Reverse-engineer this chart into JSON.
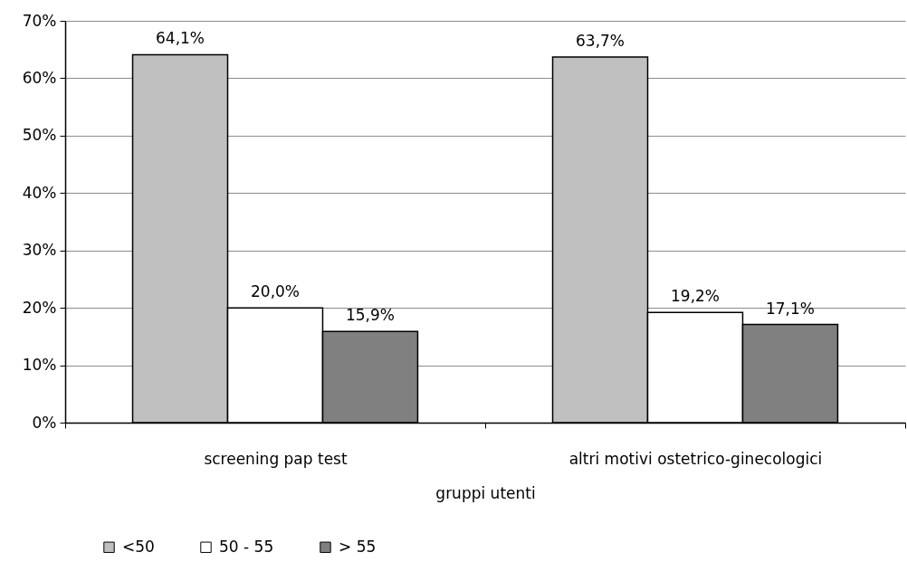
{
  "chart_data": {
    "type": "bar",
    "xlabel": "gruppi utenti",
    "categories": [
      "screening pap test",
      "altri motivi ostetrico-ginecologici"
    ],
    "series": [
      {
        "name": "<50",
        "color": "#c0c0c0",
        "values": [
          64.1,
          63.7
        ],
        "value_labels": [
          "64,1%",
          "63,7%"
        ]
      },
      {
        "name": "50 - 55",
        "color": "#ffffff",
        "values": [
          20.0,
          19.2
        ],
        "value_labels": [
          "20,0%",
          "19,2%"
        ]
      },
      {
        "name": "> 55",
        "color": "#808080",
        "values": [
          15.9,
          17.1
        ],
        "value_labels": [
          "15,9%",
          "17,1%"
        ]
      }
    ],
    "ylim": [
      0,
      70
    ],
    "yticks": [
      {
        "value": 0,
        "label": "0%"
      },
      {
        "value": 10,
        "label": "10%"
      },
      {
        "value": 20,
        "label": "20%"
      },
      {
        "value": 30,
        "label": "30%"
      },
      {
        "value": 40,
        "label": "40%"
      },
      {
        "value": 50,
        "label": "50%"
      },
      {
        "value": 60,
        "label": "60%"
      },
      {
        "value": 70,
        "label": "70%"
      }
    ],
    "grid": "y",
    "legend": "bottom"
  }
}
